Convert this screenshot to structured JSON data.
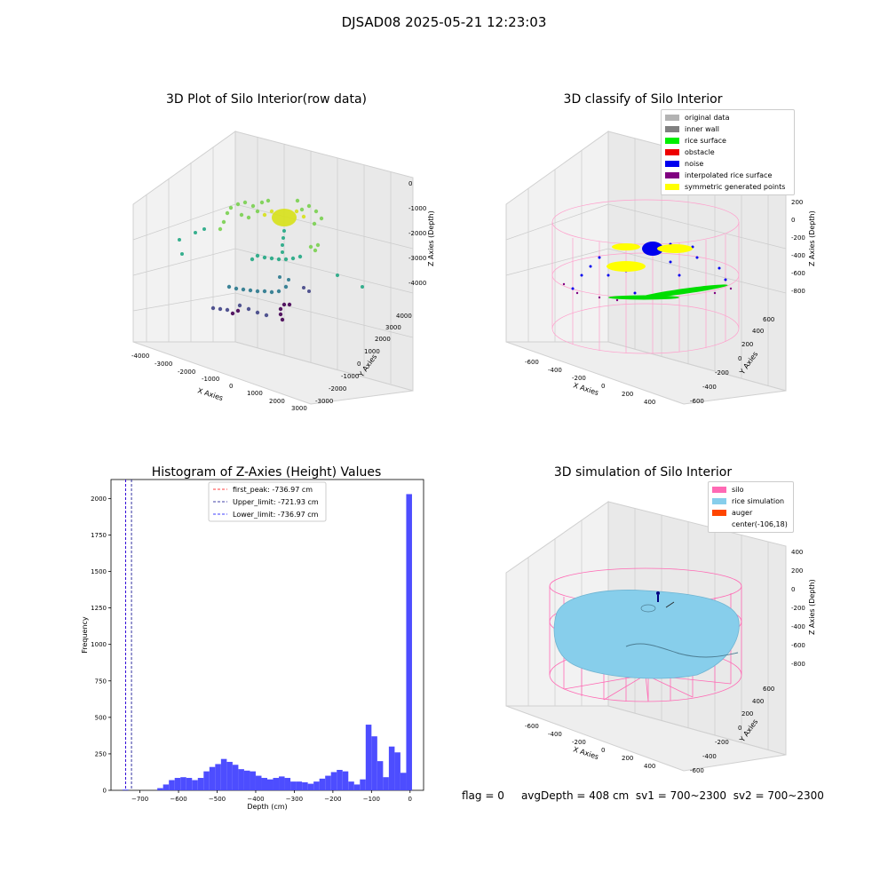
{
  "suptitle": "DJSAD08 2025-05-21 12:23:03",
  "footer": {
    "flag": "flag = 0",
    "avg": "avgDepth = 408 cm",
    "sv1": "sv1 = 700~2300",
    "sv2": "sv2 = 700~2300"
  },
  "chart_data": [
    {
      "type": "scatter",
      "title": "3D Plot of Silo Interior(row data)",
      "xlabel": "X Axies",
      "ylabel": "Y Axies",
      "zlabel": "Z Axies (Depth)",
      "x_ticks": [
        "-4000",
        "-3000",
        "-2000",
        "-1000",
        "0",
        "1000",
        "2000",
        "3000"
      ],
      "y_ticks": [
        "-3000",
        "-2000",
        "-1000",
        "0",
        "1000",
        "2000",
        "3000",
        "4000"
      ],
      "z_ticks": [
        "0",
        "-1000",
        "-2000",
        "-3000",
        "-4000"
      ],
      "colormap": "viridis (by depth)",
      "grid": true
    },
    {
      "type": "scatter",
      "title": "3D classify of Silo Interior",
      "xlabel": "X Axies",
      "ylabel": "Y Axies",
      "zlabel": "Z Axies (Depth)",
      "x_ticks": [
        "-600",
        "-400",
        "-200",
        "0",
        "200",
        "400"
      ],
      "y_ticks": [
        "-600",
        "-400",
        "-200",
        "0",
        "200",
        "400",
        "600"
      ],
      "z_ticks": [
        "200",
        "0",
        "-200",
        "-400",
        "-600",
        "-800"
      ],
      "legend_position": "top-right",
      "legend": [
        {
          "label": "original data",
          "color": "#b3b3b3"
        },
        {
          "label": "inner wall",
          "color": "#808080"
        },
        {
          "label": "rice surface",
          "color": "#00ee00"
        },
        {
          "label": "obstacle",
          "color": "#ee0000"
        },
        {
          "label": "noise",
          "color": "#0000ee"
        },
        {
          "label": "interpolated rice surface",
          "color": "#800080"
        },
        {
          "label": "symmetric generated points",
          "color": "#ffff00"
        }
      ],
      "grid": true
    },
    {
      "type": "bar",
      "title": "Histogram of Z-Axies (Height) Values",
      "xlabel": "Depth (cm)",
      "ylabel": "Frequency",
      "xlim": [
        -775,
        35
      ],
      "ylim": [
        0,
        2130
      ],
      "x_ticks": [
        -700,
        -600,
        -500,
        -400,
        -300,
        -200,
        -100,
        0
      ],
      "y_ticks": [
        0,
        250,
        500,
        750,
        1000,
        1250,
        1500,
        1750,
        2000
      ],
      "bar_color": "#4d4dff",
      "bin_width": 15,
      "bins": [
        {
          "left": -745,
          "count": 5
        },
        {
          "left": -655,
          "count": 15
        },
        {
          "left": -640,
          "count": 40
        },
        {
          "left": -625,
          "count": 70
        },
        {
          "left": -610,
          "count": 85
        },
        {
          "left": -595,
          "count": 90
        },
        {
          "left": -580,
          "count": 85
        },
        {
          "left": -565,
          "count": 70
        },
        {
          "left": -550,
          "count": 85
        },
        {
          "left": -535,
          "count": 130
        },
        {
          "left": -520,
          "count": 160
        },
        {
          "left": -505,
          "count": 180
        },
        {
          "left": -490,
          "count": 215
        },
        {
          "left": -475,
          "count": 195
        },
        {
          "left": -460,
          "count": 175
        },
        {
          "left": -445,
          "count": 145
        },
        {
          "left": -430,
          "count": 135
        },
        {
          "left": -415,
          "count": 130
        },
        {
          "left": -400,
          "count": 100
        },
        {
          "left": -385,
          "count": 85
        },
        {
          "left": -370,
          "count": 75
        },
        {
          "left": -355,
          "count": 85
        },
        {
          "left": -340,
          "count": 95
        },
        {
          "left": -325,
          "count": 85
        },
        {
          "left": -310,
          "count": 60
        },
        {
          "left": -295,
          "count": 60
        },
        {
          "left": -280,
          "count": 55
        },
        {
          "left": -265,
          "count": 45
        },
        {
          "left": -250,
          "count": 60
        },
        {
          "left": -235,
          "count": 80
        },
        {
          "left": -220,
          "count": 100
        },
        {
          "left": -205,
          "count": 125
        },
        {
          "left": -190,
          "count": 140
        },
        {
          "left": -175,
          "count": 130
        },
        {
          "left": -160,
          "count": 60
        },
        {
          "left": -145,
          "count": 40
        },
        {
          "left": -130,
          "count": 75
        },
        {
          "left": -115,
          "count": 450
        },
        {
          "left": -100,
          "count": 370
        },
        {
          "left": -85,
          "count": 200
        },
        {
          "left": -70,
          "count": 90
        },
        {
          "left": -55,
          "count": 300
        },
        {
          "left": -40,
          "count": 260
        },
        {
          "left": -25,
          "count": 120
        },
        {
          "left": -10,
          "count": 2030
        }
      ],
      "vlines": [
        {
          "x": -736.97,
          "color": "#ff0000",
          "label": "first_peak: -736.97 cm"
        },
        {
          "x": -721.93,
          "color": "#00008b",
          "label": "Upper_limit: -721.93 cm"
        },
        {
          "x": -736.97,
          "color": "#0000ff",
          "label": "Lower_limit: -736.97 cm"
        }
      ],
      "legend_position": "upper center"
    },
    {
      "type": "scatter",
      "title": "3D simulation of Silo Interior",
      "xlabel": "X Axies",
      "ylabel": "Y Axies",
      "zlabel": "Z Axies (Depth)",
      "x_ticks": [
        "-600",
        "-400",
        "-200",
        "0",
        "200",
        "400"
      ],
      "y_ticks": [
        "-600",
        "-400",
        "-200",
        "0",
        "200",
        "400",
        "600"
      ],
      "z_ticks": [
        "400",
        "200",
        "0",
        "-200",
        "-400",
        "-600",
        "-800"
      ],
      "legend_position": "top-right",
      "legend": [
        {
          "label": "silo",
          "color": "#ff69b4"
        },
        {
          "label": "rice simulation",
          "color": "#87ceeb"
        },
        {
          "label": "auger",
          "color": "#ff4500"
        },
        {
          "label": "center(-106,18)",
          "color": "none"
        }
      ],
      "grid": true
    }
  ]
}
